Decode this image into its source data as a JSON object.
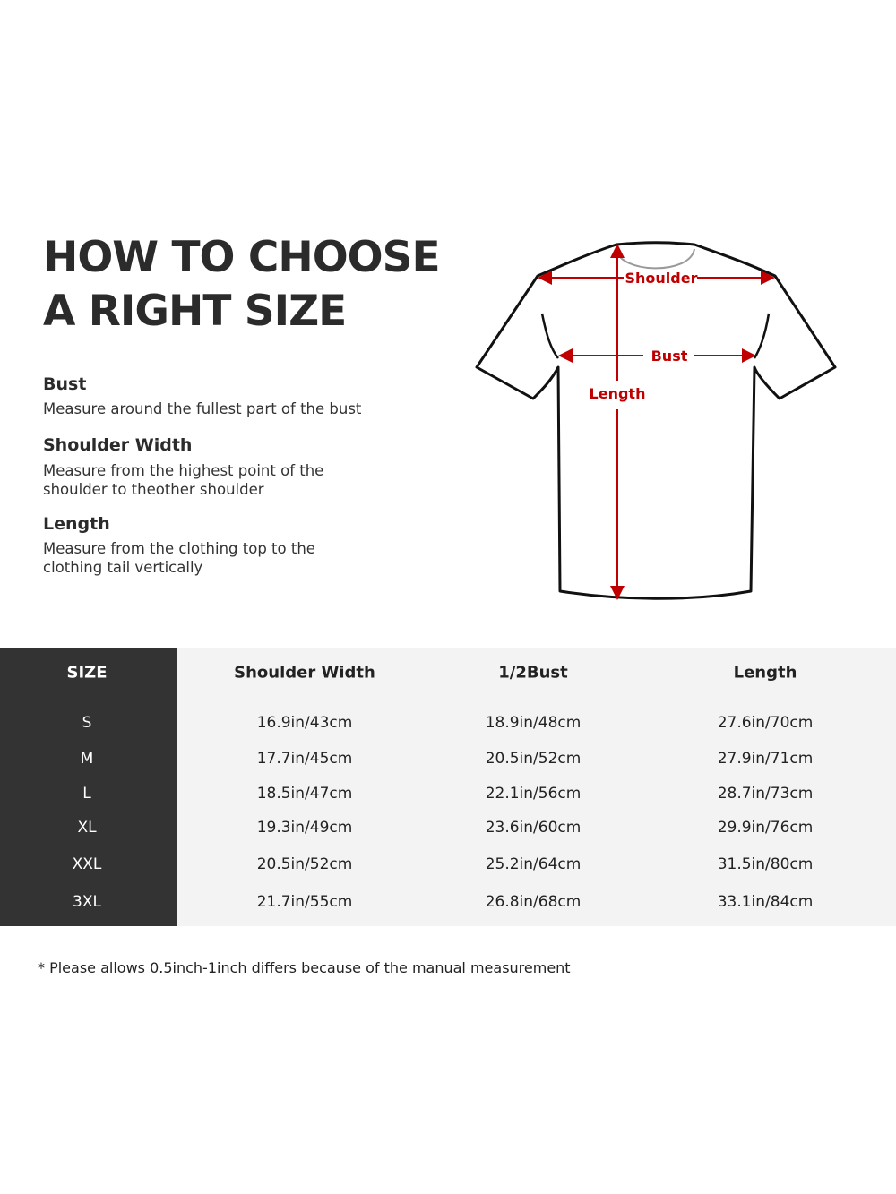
{
  "title": {
    "line1": "HOW TO CHOOSE",
    "line2": "A RIGHT SIZE"
  },
  "guide": [
    {
      "term": "Bust",
      "desc": "Measure around the fullest part of the bust"
    },
    {
      "term": "Shoulder Width",
      "desc": "Measure from the highest point of the shoulder to theother shoulder"
    },
    {
      "term": "Length",
      "desc": "Measure from the clothing top to the clothing tail vertically"
    }
  ],
  "diagram": {
    "shoulder_label": "Shoulder",
    "bust_label": "Bust",
    "length_label": "Length",
    "accent_color": "#c00000"
  },
  "table": {
    "headers": [
      "SIZE",
      "Shoulder Width",
      "1/2Bust",
      "Length"
    ],
    "rows": [
      [
        "S",
        "16.9in/43cm",
        "18.9in/48cm",
        "27.6in/70cm"
      ],
      [
        "M",
        "17.7in/45cm",
        "20.5in/52cm",
        "27.9in/71cm"
      ],
      [
        "L",
        "18.5in/47cm",
        "22.1in/56cm",
        "28.7in/73cm"
      ],
      [
        "XL",
        "19.3in/49cm",
        "23.6in/60cm",
        "29.9in/76cm"
      ],
      [
        "XXL",
        "20.5in/52cm",
        "25.2in/64cm",
        "31.5in/80cm"
      ],
      [
        "3XL",
        "21.7in/55cm",
        "26.8in/68cm",
        "33.1in/84cm"
      ]
    ]
  },
  "note": "* Please allows 0.5inch-1inch differs because of the  manual measurement"
}
